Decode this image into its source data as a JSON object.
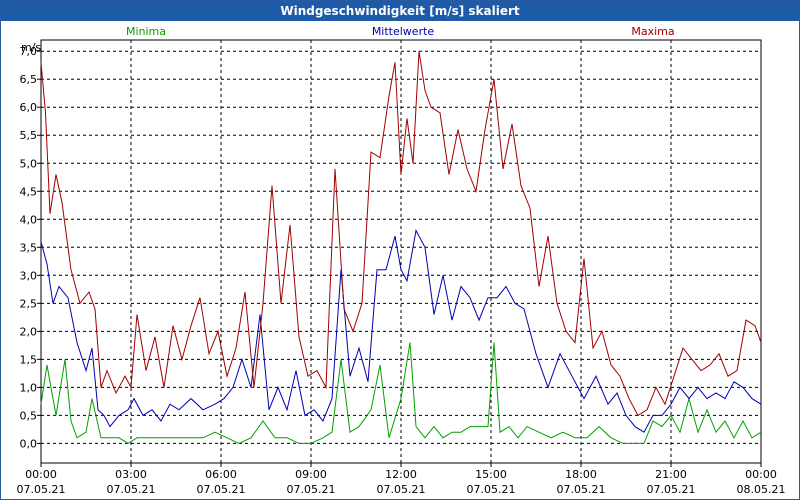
{
  "window": {
    "title": "Windgeschwindigkeit [m/s] skaliert"
  },
  "chart_data": {
    "type": "line",
    "title": "Windgeschwindigkeit [m/s] skaliert",
    "ylabel": "m/s",
    "xlim": [
      0,
      24
    ],
    "ylim": [
      -0.35,
      7.2
    ],
    "grid": true,
    "yticks": [
      "7,0",
      "6,5",
      "6,0",
      "5,5",
      "5,0",
      "4,5",
      "4,0",
      "3,5",
      "3,0",
      "2,5",
      "2,0",
      "1,5",
      "1,0",
      "0,5",
      "0,0"
    ],
    "ytick_values": [
      7.0,
      6.5,
      6.0,
      5.5,
      5.0,
      4.5,
      4.0,
      3.5,
      3.0,
      2.5,
      2.0,
      1.5,
      1.0,
      0.5,
      0.0
    ],
    "xticks": [
      {
        "time": "00:00",
        "date": "07.05.21",
        "h": 0
      },
      {
        "time": "03:00",
        "date": "07.05.21",
        "h": 3
      },
      {
        "time": "06:00",
        "date": "07.05.21",
        "h": 6
      },
      {
        "time": "09:00",
        "date": "07.05.21",
        "h": 9
      },
      {
        "time": "12:00",
        "date": "07.05.21",
        "h": 12
      },
      {
        "time": "15:00",
        "date": "07.05.21",
        "h": 15
      },
      {
        "time": "18:00",
        "date": "07.05.21",
        "h": 18
      },
      {
        "time": "21:00",
        "date": "07.05.21",
        "h": 21
      },
      {
        "time": "00:00",
        "date": "08.05.21",
        "h": 24
      }
    ],
    "series": [
      {
        "name": "Minima",
        "color": "#00a000",
        "x": [
          0,
          0.2,
          0.5,
          0.8,
          1.0,
          1.2,
          1.5,
          1.7,
          2.0,
          2.3,
          2.6,
          2.9,
          3.2,
          3.5,
          4.0,
          4.5,
          5.0,
          5.4,
          5.8,
          6.2,
          6.6,
          7.0,
          7.4,
          7.8,
          8.2,
          8.6,
          9.0,
          9.4,
          9.7,
          10.0,
          10.3,
          10.6,
          11.0,
          11.3,
          11.6,
          12.0,
          12.3,
          12.5,
          12.8,
          13.1,
          13.4,
          13.7,
          14.0,
          14.3,
          14.6,
          14.9,
          15.1,
          15.3,
          15.6,
          15.9,
          16.2,
          16.6,
          17.0,
          17.4,
          17.8,
          18.2,
          18.6,
          19.0,
          19.4,
          19.8,
          20.1,
          20.4,
          20.7,
          21.0,
          21.3,
          21.6,
          21.9,
          22.2,
          22.5,
          22.8,
          23.1,
          23.4,
          23.7,
          24.0
        ],
        "y": [
          0.7,
          1.4,
          0.5,
          1.5,
          0.4,
          0.1,
          0.2,
          0.8,
          0.1,
          0.1,
          0.1,
          0.0,
          0.1,
          0.1,
          0.1,
          0.1,
          0.1,
          0.1,
          0.2,
          0.1,
          0.0,
          0.1,
          0.4,
          0.1,
          0.1,
          0.0,
          0.0,
          0.1,
          0.2,
          1.5,
          0.2,
          0.3,
          0.6,
          1.4,
          0.1,
          0.8,
          1.8,
          0.3,
          0.1,
          0.3,
          0.1,
          0.2,
          0.2,
          0.3,
          0.3,
          0.3,
          1.8,
          0.2,
          0.3,
          0.1,
          0.3,
          0.2,
          0.1,
          0.2,
          0.1,
          0.1,
          0.3,
          0.1,
          0.0,
          0.0,
          0.0,
          0.4,
          0.3,
          0.5,
          0.2,
          0.8,
          0.2,
          0.6,
          0.2,
          0.4,
          0.1,
          0.4,
          0.1,
          0.2
        ]
      },
      {
        "name": "Mittelwerte",
        "color": "#0000b0",
        "x": [
          0,
          0.2,
          0.4,
          0.6,
          0.9,
          1.2,
          1.5,
          1.7,
          1.9,
          2.1,
          2.3,
          2.6,
          2.9,
          3.1,
          3.4,
          3.7,
          4.0,
          4.3,
          4.6,
          5.0,
          5.4,
          5.8,
          6.1,
          6.4,
          6.7,
          7.0,
          7.3,
          7.6,
          7.9,
          8.2,
          8.5,
          8.8,
          9.1,
          9.4,
          9.7,
          10.0,
          10.3,
          10.6,
          10.9,
          11.2,
          11.5,
          11.8,
          12.0,
          12.2,
          12.5,
          12.8,
          13.1,
          13.4,
          13.7,
          14.0,
          14.3,
          14.6,
          14.9,
          15.2,
          15.5,
          15.8,
          16.1,
          16.5,
          16.9,
          17.3,
          17.7,
          18.1,
          18.5,
          18.9,
          19.2,
          19.5,
          19.8,
          20.1,
          20.4,
          20.7,
          21.0,
          21.3,
          21.6,
          21.9,
          22.2,
          22.5,
          22.8,
          23.1,
          23.4,
          23.7,
          24.0
        ],
        "y": [
          3.6,
          3.2,
          2.5,
          2.8,
          2.6,
          1.8,
          1.3,
          1.7,
          0.6,
          0.5,
          0.3,
          0.5,
          0.6,
          0.8,
          0.5,
          0.6,
          0.4,
          0.7,
          0.6,
          0.8,
          0.6,
          0.7,
          0.8,
          1.0,
          1.5,
          1.0,
          2.3,
          0.6,
          1.0,
          0.6,
          1.3,
          0.5,
          0.6,
          0.4,
          0.8,
          3.1,
          1.2,
          1.7,
          1.1,
          3.1,
          3.1,
          3.7,
          3.1,
          2.9,
          3.8,
          3.5,
          2.3,
          3.0,
          2.2,
          2.8,
          2.6,
          2.2,
          2.6,
          2.6,
          2.8,
          2.5,
          2.4,
          1.6,
          1.0,
          1.6,
          1.2,
          0.8,
          1.2,
          0.7,
          0.9,
          0.5,
          0.3,
          0.2,
          0.5,
          0.5,
          0.7,
          1.0,
          0.8,
          1.0,
          0.8,
          0.9,
          0.8,
          1.1,
          1.0,
          0.8,
          0.7
        ]
      },
      {
        "name": "Maxima",
        "color": "#a00000",
        "x": [
          0,
          0.15,
          0.3,
          0.5,
          0.7,
          1.0,
          1.3,
          1.6,
          1.8,
          2.0,
          2.2,
          2.5,
          2.8,
          3.0,
          3.2,
          3.5,
          3.8,
          4.1,
          4.4,
          4.7,
          5.0,
          5.3,
          5.6,
          5.9,
          6.2,
          6.5,
          6.8,
          7.1,
          7.4,
          7.7,
          8.0,
          8.3,
          8.6,
          8.9,
          9.2,
          9.5,
          9.8,
          10.1,
          10.4,
          10.7,
          11.0,
          11.3,
          11.6,
          11.8,
          12.0,
          12.2,
          12.4,
          12.6,
          12.8,
          13.0,
          13.3,
          13.6,
          13.9,
          14.2,
          14.5,
          14.8,
          15.1,
          15.4,
          15.7,
          16.0,
          16.3,
          16.6,
          16.9,
          17.2,
          17.5,
          17.8,
          18.1,
          18.4,
          18.7,
          19.0,
          19.3,
          19.6,
          19.9,
          20.2,
          20.5,
          20.8,
          21.1,
          21.4,
          21.7,
          22.0,
          22.3,
          22.6,
          22.9,
          23.2,
          23.5,
          23.8,
          24.0
        ],
        "y": [
          6.8,
          5.9,
          4.1,
          4.8,
          4.3,
          3.1,
          2.5,
          2.7,
          2.4,
          1.0,
          1.3,
          0.9,
          1.2,
          1.0,
          2.3,
          1.3,
          1.9,
          1.0,
          2.1,
          1.5,
          2.1,
          2.6,
          1.6,
          2.0,
          1.2,
          1.7,
          2.7,
          1.0,
          2.5,
          4.6,
          2.5,
          3.9,
          1.9,
          1.2,
          1.3,
          1.0,
          4.9,
          2.4,
          2.0,
          2.5,
          5.2,
          5.1,
          6.2,
          6.8,
          4.8,
          5.8,
          5.0,
          7.0,
          6.3,
          6.0,
          5.9,
          4.8,
          5.6,
          4.9,
          4.5,
          5.6,
          6.5,
          4.9,
          5.7,
          4.6,
          4.2,
          2.8,
          3.7,
          2.5,
          2.0,
          1.8,
          3.3,
          1.7,
          2.0,
          1.4,
          1.2,
          0.8,
          0.5,
          0.6,
          1.0,
          0.7,
          1.2,
          1.7,
          1.5,
          1.3,
          1.4,
          1.6,
          1.2,
          1.3,
          2.2,
          2.1,
          1.8
        ]
      }
    ]
  }
}
